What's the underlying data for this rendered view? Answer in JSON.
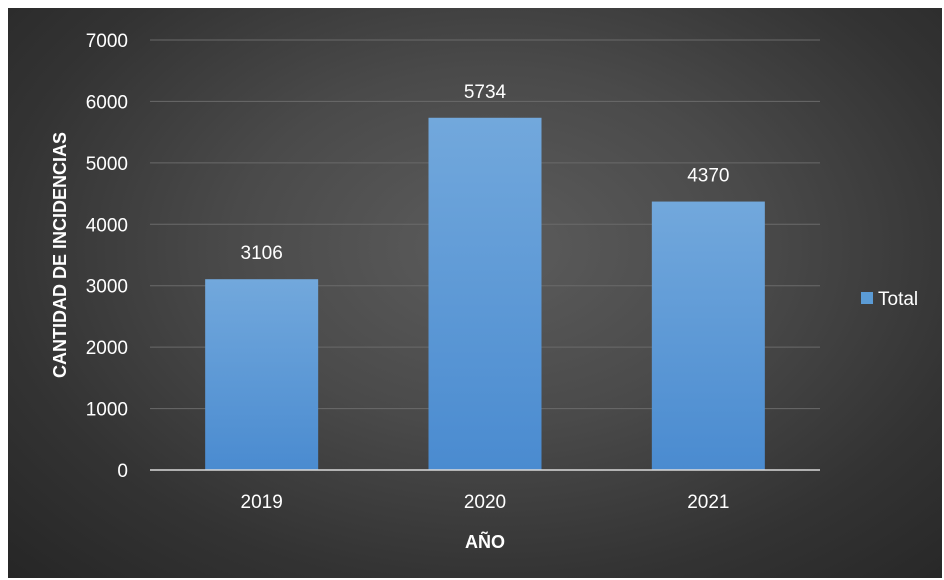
{
  "chart_data": {
    "type": "bar",
    "categories": [
      "2019",
      "2020",
      "2021"
    ],
    "series": [
      {
        "name": "Total",
        "values": [
          3106,
          5734,
          4370
        ],
        "color": "#5b9bd5"
      }
    ],
    "title": "",
    "xlabel": "AÑO",
    "ylabel": "CANTIDAD DE INCIDENCIAS",
    "ylim": [
      0,
      7000
    ],
    "yticks": [
      "0",
      "1000",
      "2000",
      "3000",
      "4000",
      "5000",
      "6000",
      "7000"
    ],
    "data_labels": [
      "3106",
      "5734",
      "4370"
    ],
    "grid": true,
    "legend_position": "right",
    "background": "#404040"
  }
}
